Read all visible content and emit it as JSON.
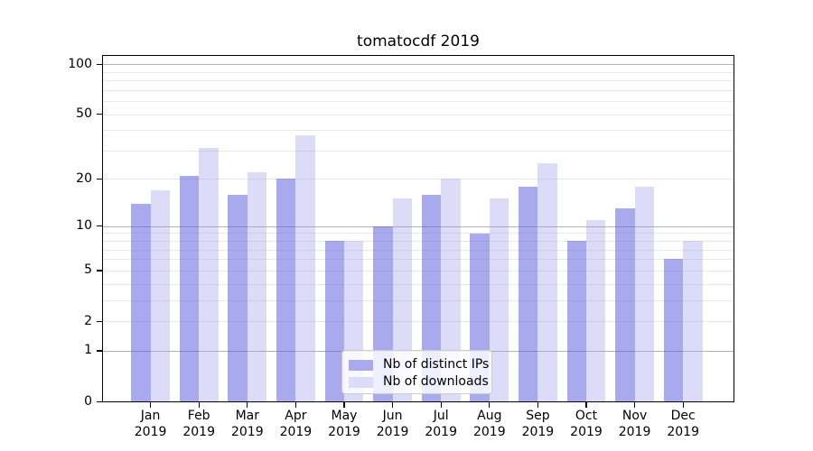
{
  "title": "tomatocdf 2019",
  "chart_data": {
    "type": "bar",
    "title": "tomatocdf 2019",
    "categories": [
      "Jan",
      "Feb",
      "Mar",
      "Apr",
      "May",
      "Jun",
      "Jul",
      "Aug",
      "Sep",
      "Oct",
      "Nov",
      "Dec"
    ],
    "year": "2019",
    "x_tick_labels_second_line": "2019",
    "series": [
      {
        "name": "Nb of distinct IPs",
        "color": "#a9a9ee",
        "fill": "rgba(83,83,221,0.5)",
        "values": [
          14,
          21,
          16,
          20,
          8,
          10,
          16,
          9,
          18,
          8,
          13,
          6
        ]
      },
      {
        "name": "Nb of downloads",
        "color": "#dcdcf8",
        "fill": "rgba(155,155,235,0.35)",
        "values": [
          17,
          31,
          22,
          37,
          8,
          15,
          20,
          15,
          25,
          11,
          18,
          8
        ]
      }
    ],
    "y_scale": "log1p",
    "ylim": [
      0,
      113
    ],
    "y_tick_labels": [
      "100",
      "50",
      "20",
      "10",
      "5",
      "2",
      "1",
      "0"
    ],
    "y_ticks": [
      100,
      50,
      20,
      10,
      5,
      2,
      1,
      0
    ],
    "y_major_gridlines": [
      1,
      10,
      100
    ],
    "y_minor_gridlines": [
      2,
      3,
      4,
      5,
      6,
      7,
      8,
      9,
      20,
      30,
      40,
      50,
      60,
      70,
      80,
      90
    ],
    "grid": true,
    "legend_position": "lower center"
  }
}
